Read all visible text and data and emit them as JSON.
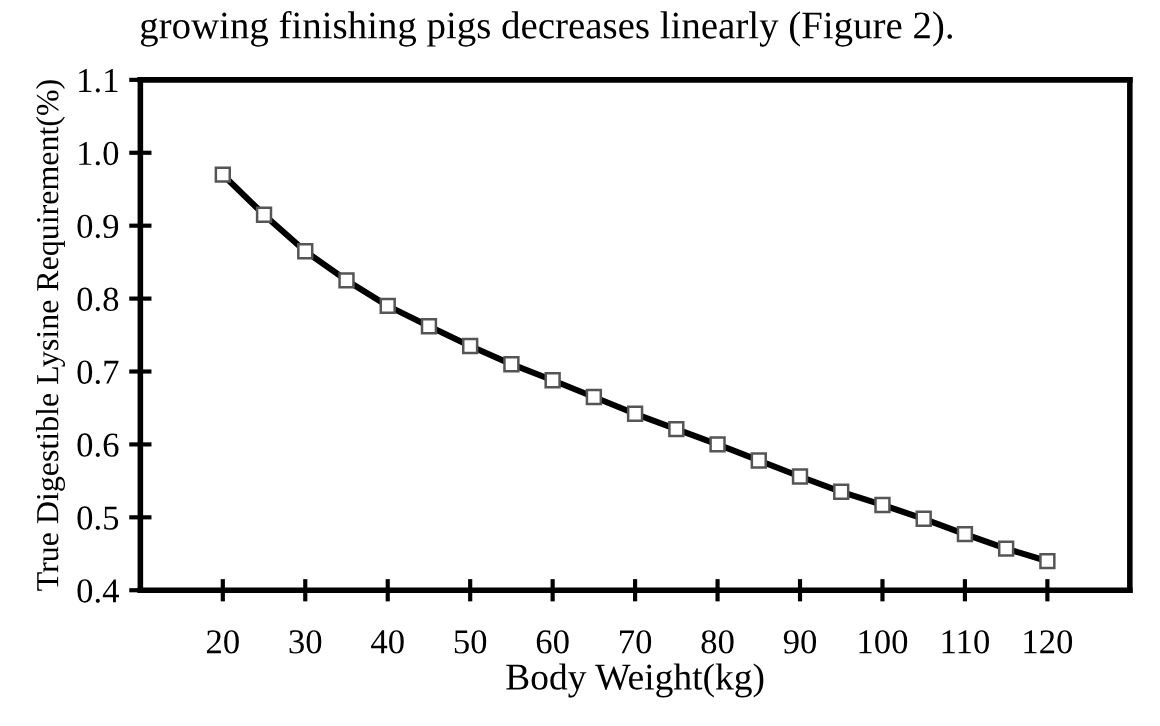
{
  "chart_data": {
    "type": "line",
    "xlabel": "Body Weight(kg)",
    "ylabel": "True Digestible Lysine Requirement(%)",
    "annotations": [
      "growing finishing pigs decreases linearly (Figure 2)."
    ],
    "x": [
      20,
      25,
      30,
      35,
      40,
      45,
      50,
      55,
      60,
      65,
      70,
      75,
      80,
      85,
      90,
      95,
      100,
      105,
      110,
      115,
      120
    ],
    "series": [
      {
        "color": "#000000",
        "values": [
          0.97,
          0.915,
          0.865,
          0.825,
          0.79,
          0.762,
          0.735,
          0.71,
          0.688,
          0.665,
          0.642,
          0.621,
          0.6,
          0.578,
          0.556,
          0.535,
          0.517,
          0.498,
          0.477,
          0.457,
          0.44
        ]
      }
    ],
    "xlim": [
      10,
      130
    ],
    "xticks": [
      20,
      30,
      40,
      50,
      60,
      70,
      80,
      90,
      100,
      110,
      120
    ],
    "ylim": [
      0.4,
      1.1
    ],
    "yticks": [
      {
        "value": 0.4,
        "label": "0.4"
      },
      {
        "value": 0.5,
        "label": "0.5"
      },
      {
        "value": 0.6,
        "label": "0.6"
      },
      {
        "value": 0.7,
        "label": "0.7"
      },
      {
        "value": 0.8,
        "label": "0.8"
      },
      {
        "value": 0.9,
        "label": "0.9"
      },
      {
        "value": 1.0,
        "label": "1.0"
      },
      {
        "value": 1.1,
        "label": "1.1"
      }
    ],
    "grid": false,
    "legend": false,
    "marker": "square",
    "line_style": "solid"
  }
}
